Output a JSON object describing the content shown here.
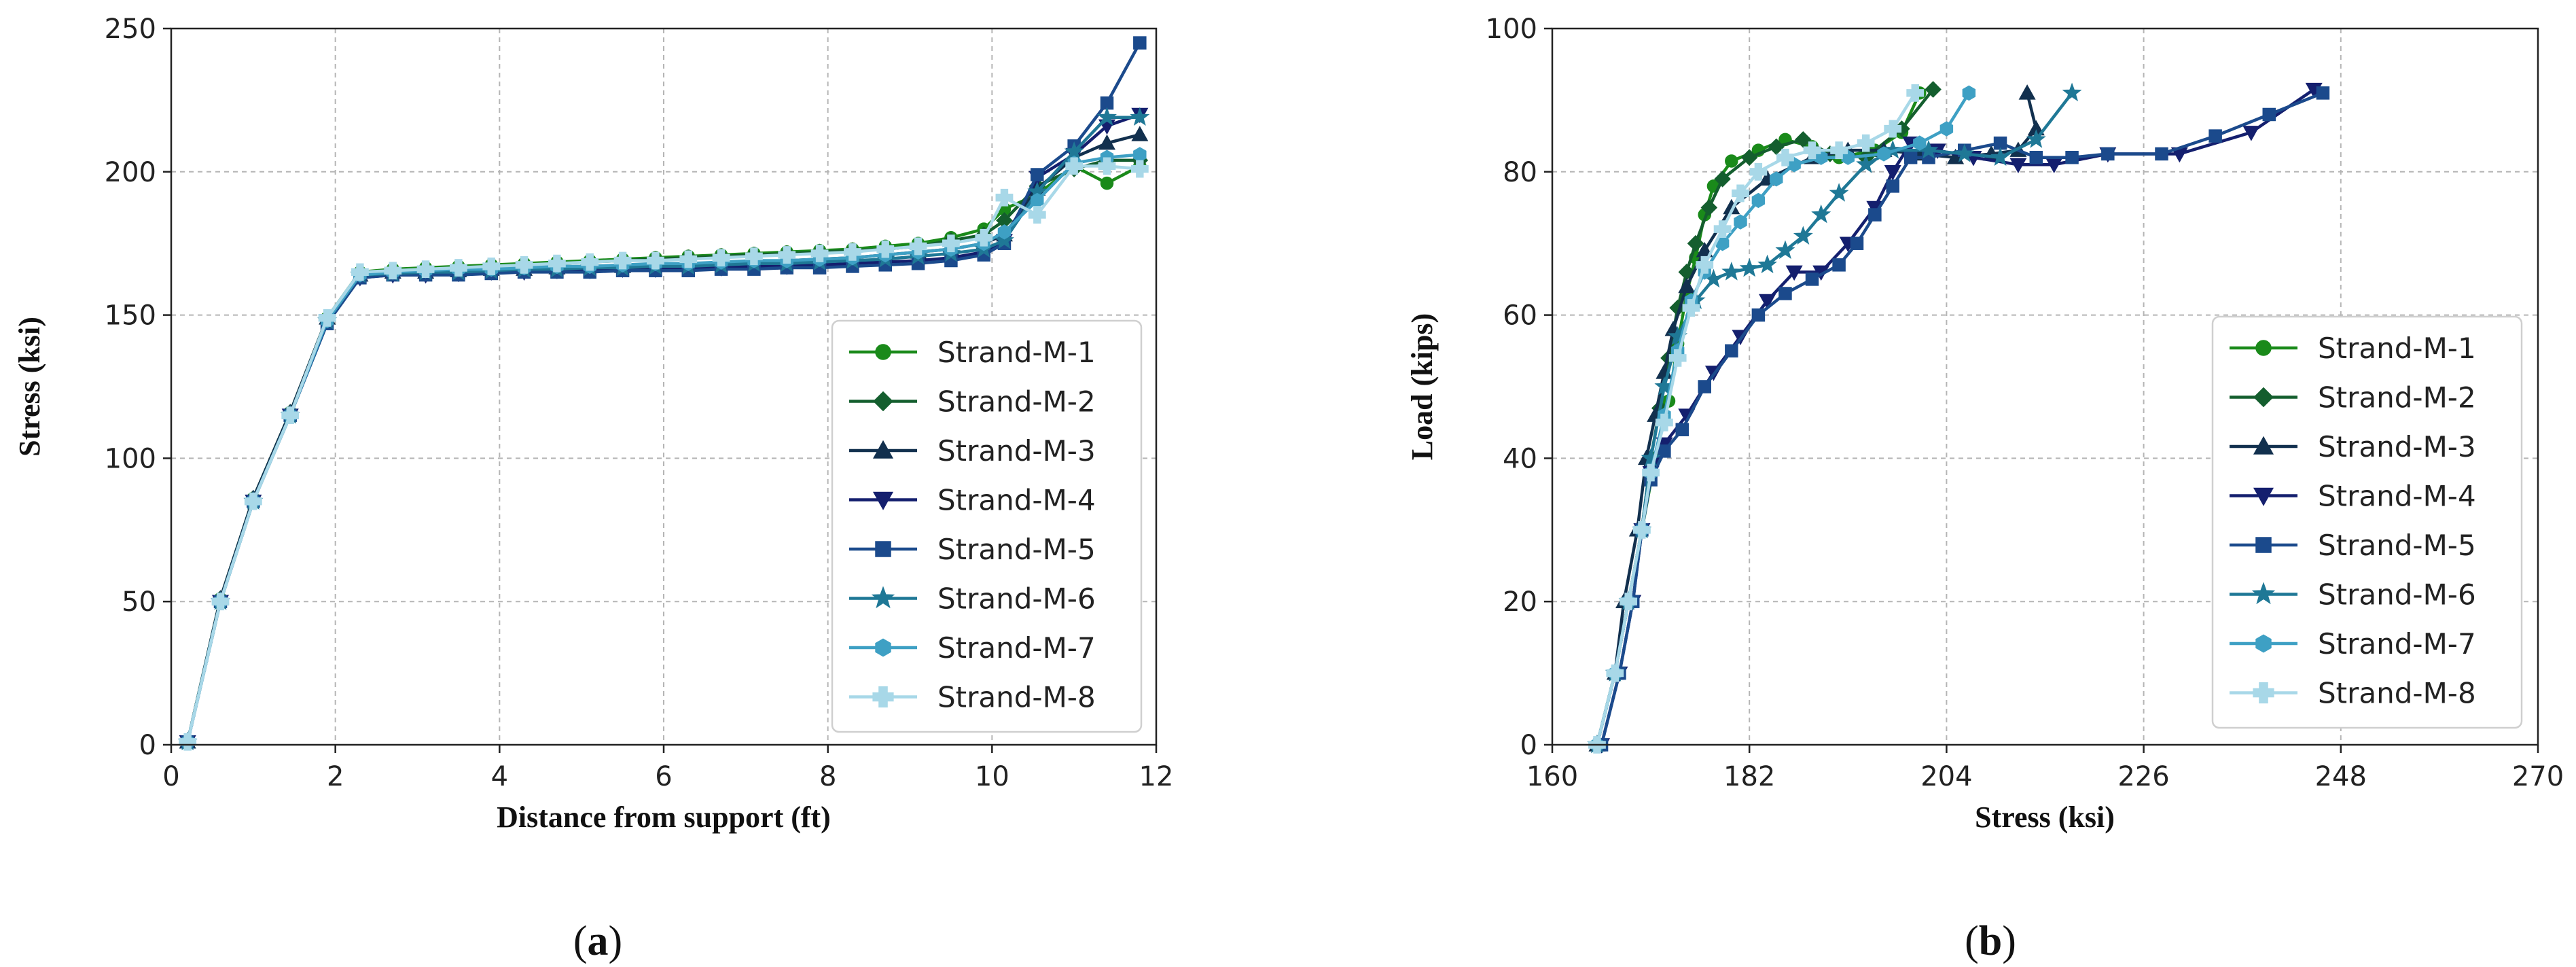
{
  "series_styles": [
    {
      "name": "Strand-M-1",
      "color": "#1a8a1a",
      "marker": "circle"
    },
    {
      "name": "Strand-M-2",
      "color": "#145e2e",
      "marker": "diamond"
    },
    {
      "name": "Strand-M-3",
      "color": "#12304e",
      "marker": "triangle-up"
    },
    {
      "name": "Strand-M-4",
      "color": "#141f6e",
      "marker": "triangle-down"
    },
    {
      "name": "Strand-M-5",
      "color": "#1b4a8c",
      "marker": "square"
    },
    {
      "name": "Strand-M-6",
      "color": "#1f7896",
      "marker": "star"
    },
    {
      "name": "Strand-M-7",
      "color": "#3ea0c4",
      "marker": "hexagon"
    },
    {
      "name": "Strand-M-8",
      "color": "#a8d8e8",
      "marker": "plus"
    }
  ],
  "chart_data": [
    {
      "id": "a",
      "type": "line",
      "panel_label": "a",
      "title": "",
      "xlabel": "Distance from support (ft)",
      "ylabel": "Stress (ksi)",
      "xlim": [
        0,
        12
      ],
      "ylim": [
        0,
        250
      ],
      "xticks": [
        0,
        2,
        4,
        6,
        8,
        10,
        12
      ],
      "yticks": [
        0,
        50,
        100,
        150,
        200,
        250
      ],
      "grid": true,
      "legend_position": "lower-right",
      "series": [
        {
          "name": "Strand-M-1",
          "x": [
            0.2,
            0.6,
            1.0,
            1.45,
            1.9,
            2.3,
            2.7,
            3.1,
            3.5,
            3.9,
            4.3,
            4.7,
            5.1,
            5.5,
            5.9,
            6.3,
            6.7,
            7.1,
            7.5,
            7.9,
            8.3,
            8.7,
            9.1,
            9.5,
            9.9,
            10.15,
            10.55,
            11.0,
            11.4,
            11.8
          ],
          "y": [
            1,
            51,
            86,
            116,
            149,
            165,
            166,
            166.5,
            167,
            167.5,
            168,
            168.5,
            169,
            169.5,
            170,
            170.5,
            171,
            171.5,
            172,
            172.5,
            173,
            174,
            175,
            177,
            180,
            187,
            192,
            202,
            196,
            202
          ]
        },
        {
          "name": "Strand-M-2",
          "x": [
            0.2,
            0.6,
            1.0,
            1.45,
            1.9,
            2.3,
            2.7,
            3.1,
            3.5,
            3.9,
            4.3,
            4.7,
            5.1,
            5.5,
            5.9,
            6.3,
            6.7,
            7.1,
            7.5,
            7.9,
            8.3,
            8.7,
            9.1,
            9.5,
            9.9,
            10.15,
            10.55,
            11.0,
            11.4,
            11.8
          ],
          "y": [
            1,
            51,
            86,
            116,
            149,
            165,
            165.5,
            166,
            166.5,
            167,
            167.5,
            168,
            168.5,
            169,
            169.5,
            170,
            170.5,
            171,
            171.5,
            172,
            172.5,
            173,
            174,
            176,
            178,
            183,
            195,
            201,
            204,
            204
          ]
        },
        {
          "name": "Strand-M-3",
          "x": [
            0.2,
            0.6,
            1.0,
            1.45,
            1.9,
            2.3,
            2.7,
            3.1,
            3.5,
            3.9,
            4.3,
            4.7,
            5.1,
            5.5,
            5.9,
            6.3,
            6.7,
            7.1,
            7.5,
            7.9,
            8.3,
            8.7,
            9.1,
            9.5,
            9.9,
            10.15,
            10.55,
            11.0,
            11.4,
            11.8
          ],
          "y": [
            1,
            51,
            86,
            116,
            149,
            164,
            165,
            165,
            165.5,
            166,
            166,
            166.5,
            167,
            167,
            167.5,
            168,
            168,
            168.5,
            169,
            169.5,
            170,
            171,
            172,
            173,
            175,
            178,
            194,
            205,
            210,
            213
          ]
        },
        {
          "name": "Strand-M-4",
          "x": [
            0.2,
            0.6,
            1.0,
            1.45,
            1.9,
            2.3,
            2.7,
            3.1,
            3.5,
            3.9,
            4.3,
            4.7,
            5.1,
            5.5,
            5.9,
            6.3,
            6.7,
            7.1,
            7.5,
            7.9,
            8.3,
            8.7,
            9.1,
            9.5,
            9.9,
            10.15,
            10.55,
            11.0,
            11.4,
            11.8
          ],
          "y": [
            1,
            50,
            85,
            115,
            148,
            163,
            164,
            164,
            164.5,
            165,
            165,
            165.5,
            165.5,
            166,
            166,
            166.5,
            166.5,
            167,
            167,
            167.5,
            168,
            168.5,
            169,
            170,
            172,
            176,
            198,
            206,
            216,
            220
          ]
        },
        {
          "name": "Strand-M-5",
          "x": [
            0.2,
            0.6,
            1.0,
            1.45,
            1.9,
            2.3,
            2.7,
            3.1,
            3.5,
            3.9,
            4.3,
            4.7,
            5.1,
            5.5,
            5.9,
            6.3,
            6.7,
            7.1,
            7.5,
            7.9,
            8.3,
            8.7,
            9.1,
            9.5,
            9.9,
            10.15,
            10.55,
            11.0,
            11.4,
            11.8
          ],
          "y": [
            1,
            50,
            85,
            115,
            147,
            163,
            164,
            164,
            164,
            164.5,
            165,
            165,
            165,
            165.5,
            165.5,
            165.5,
            166,
            166,
            166.5,
            166.5,
            167,
            167.5,
            168,
            169,
            171,
            175,
            199,
            209,
            224,
            245
          ]
        },
        {
          "name": "Strand-M-6",
          "x": [
            0.2,
            0.6,
            1.0,
            1.45,
            1.9,
            2.3,
            2.7,
            3.1,
            3.5,
            3.9,
            4.3,
            4.7,
            5.1,
            5.5,
            5.9,
            6.3,
            6.7,
            7.1,
            7.5,
            7.9,
            8.3,
            8.7,
            9.1,
            9.5,
            9.9,
            10.15,
            10.55,
            11.0,
            11.4,
            11.8
          ],
          "y": [
            1,
            50,
            85,
            115,
            148,
            164,
            164.5,
            165,
            165,
            165.5,
            166,
            166,
            166.5,
            166.5,
            167,
            167,
            167.5,
            168,
            168,
            168.5,
            169,
            169.5,
            170.5,
            171.5,
            173,
            176,
            193,
            207,
            219,
            219
          ]
        },
        {
          "name": "Strand-M-7",
          "x": [
            0.2,
            0.6,
            1.0,
            1.45,
            1.9,
            2.3,
            2.7,
            3.1,
            3.5,
            3.9,
            4.3,
            4.7,
            5.1,
            5.5,
            5.9,
            6.3,
            6.7,
            7.1,
            7.5,
            7.9,
            8.3,
            8.7,
            9.1,
            9.5,
            9.9,
            10.15,
            10.55,
            11.0,
            11.4,
            11.8
          ],
          "y": [
            1,
            50,
            85,
            115,
            148,
            164,
            165,
            165.5,
            166,
            166,
            166.5,
            167,
            167,
            167.5,
            168,
            168,
            168.5,
            169,
            169,
            169.5,
            170,
            171,
            172,
            173,
            175,
            179,
            190,
            203,
            205,
            206
          ]
        },
        {
          "name": "Strand-M-8",
          "x": [
            0.2,
            0.6,
            1.0,
            1.45,
            1.9,
            2.3,
            2.7,
            3.1,
            3.5,
            3.9,
            4.3,
            4.7,
            5.1,
            5.5,
            5.9,
            6.3,
            6.7,
            7.1,
            7.5,
            7.9,
            8.3,
            8.7,
            9.1,
            9.5,
            9.9,
            10.15,
            10.55,
            11.0,
            11.4,
            11.8
          ],
          "y": [
            1,
            50,
            85,
            115,
            149,
            165,
            165.5,
            166,
            166.5,
            167,
            167.5,
            168,
            168.5,
            169,
            169,
            169.5,
            170,
            170.5,
            171,
            171.5,
            172,
            173,
            174,
            175,
            177,
            191,
            185,
            202,
            202,
            201
          ]
        }
      ]
    },
    {
      "id": "b",
      "type": "line",
      "panel_label": "b",
      "title": "",
      "xlabel": "Stress (ksi)",
      "ylabel": "Load (kips)",
      "xlim": [
        160,
        270
      ],
      "ylim": [
        0,
        100
      ],
      "xticks": [
        160,
        182,
        204,
        226,
        248,
        270
      ],
      "yticks": [
        0,
        20,
        40,
        60,
        80,
        100
      ],
      "grid": true,
      "legend_position": "lower-right",
      "series": [
        {
          "name": "Strand-M-1",
          "x": [
            165,
            167,
            168.5,
            170,
            171.5,
            173,
            174,
            175,
            176,
            177,
            178,
            180,
            183,
            186,
            189,
            192,
            196,
            199,
            201
          ],
          "y": [
            0,
            10,
            20,
            30,
            40,
            48,
            56,
            63,
            68,
            74,
            78,
            81.5,
            83,
            84.5,
            83.5,
            82,
            83,
            85.5,
            91
          ]
        },
        {
          "name": "Strand-M-2",
          "x": [
            165,
            167,
            168.5,
            170,
            171,
            172,
            173,
            174,
            175,
            176,
            177.5,
            179,
            182,
            185,
            188,
            191,
            195,
            199,
            202.5
          ],
          "y": [
            0,
            10,
            20,
            30,
            40,
            47,
            54,
            61,
            66,
            70,
            75,
            79,
            82,
            83.5,
            84.5,
            82.5,
            82,
            86,
            91.5
          ]
        },
        {
          "name": "Strand-M-3",
          "x": [
            165,
            167,
            168,
            169.5,
            170.5,
            171.5,
            172.5,
            173.5,
            175,
            177,
            180,
            184,
            189,
            193,
            197,
            201,
            205,
            209,
            212,
            214,
            213
          ],
          "y": [
            0,
            10,
            20,
            30,
            40,
            46,
            52,
            58,
            64,
            69,
            75,
            79,
            82,
            83,
            83,
            82.5,
            82,
            82.5,
            83,
            86,
            91
          ]
        },
        {
          "name": "Strand-M-4",
          "x": [
            165.5,
            167.5,
            169,
            170,
            171,
            172.5,
            175,
            178,
            181,
            184,
            187,
            190,
            193,
            196,
            198,
            200,
            203,
            207,
            212,
            216,
            222,
            230,
            238,
            245
          ],
          "y": [
            0,
            10,
            20,
            30,
            38,
            42,
            46,
            52,
            57,
            62,
            66,
            66,
            70,
            75,
            80,
            84,
            83,
            82,
            81,
            81,
            82.5,
            82.5,
            85.5,
            91.5
          ]
        },
        {
          "name": "Strand-M-5",
          "x": [
            165.5,
            167.5,
            169,
            170,
            171,
            172.5,
            174.5,
            177,
            180,
            183,
            186,
            189,
            192,
            194,
            196,
            198,
            200,
            202,
            206,
            210,
            214,
            218,
            222,
            228,
            234,
            240,
            246
          ],
          "y": [
            0,
            10,
            20,
            30,
            37,
            41,
            44,
            50,
            55,
            60,
            63,
            65,
            67,
            70,
            74,
            78,
            82,
            82,
            83,
            84,
            82,
            82,
            82.5,
            82.5,
            85,
            88,
            91
          ]
        },
        {
          "name": "Strand-M-6",
          "x": [
            165,
            167,
            168.5,
            170,
            171,
            172.5,
            174,
            176,
            178,
            180,
            182,
            184,
            186,
            188,
            190,
            192,
            195,
            198,
            202,
            206,
            210,
            214,
            218
          ],
          "y": [
            0,
            10,
            20,
            30,
            40,
            50,
            57,
            62,
            65,
            66,
            66.5,
            67,
            69,
            71,
            74,
            77,
            81,
            83,
            83,
            82.5,
            82,
            84.5,
            91
          ]
        },
        {
          "name": "Strand-M-7",
          "x": [
            165,
            167,
            168.5,
            170,
            171,
            172.5,
            174,
            175.5,
            177,
            179,
            181,
            183,
            185,
            187,
            190,
            193,
            197,
            201,
            204,
            206.5
          ],
          "y": [
            0,
            10,
            20,
            30,
            38,
            46,
            55,
            62,
            66,
            70,
            73,
            76,
            79,
            81,
            82,
            82,
            82.5,
            84,
            86,
            91
          ]
        },
        {
          "name": "Strand-M-8",
          "x": [
            165,
            167,
            168.5,
            170,
            171,
            172.5,
            174,
            175.5,
            177,
            179,
            181,
            183,
            186,
            189,
            192,
            195,
            198,
            200.5
          ],
          "y": [
            0,
            10,
            20,
            30,
            38,
            45,
            54,
            61,
            67,
            72,
            77,
            80,
            82,
            83,
            83,
            84,
            86,
            91
          ]
        }
      ]
    }
  ]
}
